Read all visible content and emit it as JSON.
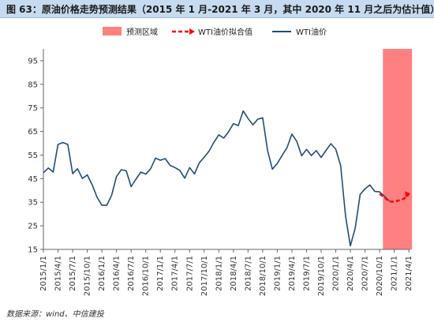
{
  "title": "图 63：原油价格走势预测结果（2015 年 1 月-2021 年 3 月，其中 2020 年 11 月之后为估计值）",
  "source": "数据来源：wind、中信建投",
  "colors": {
    "actual": "#1f4e79",
    "forecast": "#ff0000",
    "region": "#ff8080",
    "axis": "#666666"
  },
  "chart_data": {
    "type": "line",
    "legend": {
      "placement": "top",
      "items": [
        {
          "key": "region",
          "label": "预测区域"
        },
        {
          "key": "forecast",
          "label": "WTI油价拟合值"
        },
        {
          "key": "actual",
          "label": "WTI油价"
        }
      ]
    },
    "ylim": [
      15,
      100
    ],
    "yticks": [
      15,
      25,
      35,
      45,
      55,
      65,
      75,
      85,
      95
    ],
    "xticks": [
      "2015/1/1",
      "2015/4/1",
      "2015/7/1",
      "2015/10/1",
      "2016/1/1",
      "2016/4/1",
      "2016/7/1",
      "2016/10/1",
      "2017/1/1",
      "2017/4/1",
      "2017/7/1",
      "2017/10/1",
      "2018/1/1",
      "2018/4/1",
      "2018/7/1",
      "2018/10/1",
      "2019/1/1",
      "2019/4/1",
      "2019/7/1",
      "2019/10/1",
      "2020/1/1",
      "2020/4/1",
      "2020/7/1",
      "2020/10/1",
      "2021/1/1",
      "2021/4/1"
    ],
    "forecast_region": {
      "start": "2020/11/1",
      "end": "2021/4/1"
    },
    "series": [
      {
        "name": "WTI油价",
        "key": "actual",
        "x": [
          "2015/1",
          "2015/2",
          "2015/3",
          "2015/4",
          "2015/5",
          "2015/6",
          "2015/7",
          "2015/8",
          "2015/9",
          "2015/10",
          "2015/11",
          "2015/12",
          "2016/1",
          "2016/2",
          "2016/3",
          "2016/4",
          "2016/5",
          "2016/6",
          "2016/7",
          "2016/8",
          "2016/9",
          "2016/10",
          "2016/11",
          "2016/12",
          "2017/1",
          "2017/2",
          "2017/3",
          "2017/4",
          "2017/5",
          "2017/6",
          "2017/7",
          "2017/8",
          "2017/9",
          "2017/10",
          "2017/11",
          "2017/12",
          "2018/1",
          "2018/2",
          "2018/3",
          "2018/4",
          "2018/5",
          "2018/6",
          "2018/7",
          "2018/8",
          "2018/9",
          "2018/10",
          "2018/11",
          "2018/12",
          "2019/1",
          "2019/2",
          "2019/3",
          "2019/4",
          "2019/5",
          "2019/6",
          "2019/7",
          "2019/8",
          "2019/9",
          "2019/10",
          "2019/11",
          "2019/12",
          "2020/1",
          "2020/2",
          "2020/3",
          "2020/4",
          "2020/5",
          "2020/6",
          "2020/7",
          "2020/8",
          "2020/9",
          "2020/10",
          "2020/11",
          "2020/12"
        ],
        "values": [
          47.5,
          49.5,
          47.8,
          59.5,
          60.3,
          59.5,
          47.1,
          49.2,
          45.1,
          46.6,
          42.4,
          37.2,
          33.7,
          33.7,
          38.0,
          45.9,
          48.8,
          48.3,
          41.6,
          44.8,
          47.8,
          46.9,
          49.2,
          53.7,
          52.8,
          53.5,
          50.6,
          49.7,
          48.5,
          45.2,
          49.7,
          47.0,
          51.7,
          54.1,
          56.7,
          60.4,
          63.6,
          62.2,
          64.9,
          68.3,
          67.5,
          73.7,
          70.5,
          67.8,
          70.2,
          70.8,
          56.9,
          49.0,
          51.4,
          54.9,
          58.2,
          63.9,
          60.8,
          54.7,
          57.4,
          54.8,
          56.9,
          54.0,
          57.0,
          59.8,
          57.5,
          50.5,
          29.2,
          16.5,
          24.1,
          38.3,
          40.7,
          42.3,
          39.6,
          39.4,
          37.5,
          35.5
        ]
      },
      {
        "name": "WTI油价拟合值",
        "key": "forecast",
        "x": [
          "2020/10",
          "2020/11",
          "2020/12",
          "2021/1",
          "2021/2",
          "2021/3",
          "2021/4"
        ],
        "values": [
          38.5,
          37.0,
          35.3,
          35.2,
          35.8,
          36.5,
          38.3
        ]
      }
    ]
  }
}
